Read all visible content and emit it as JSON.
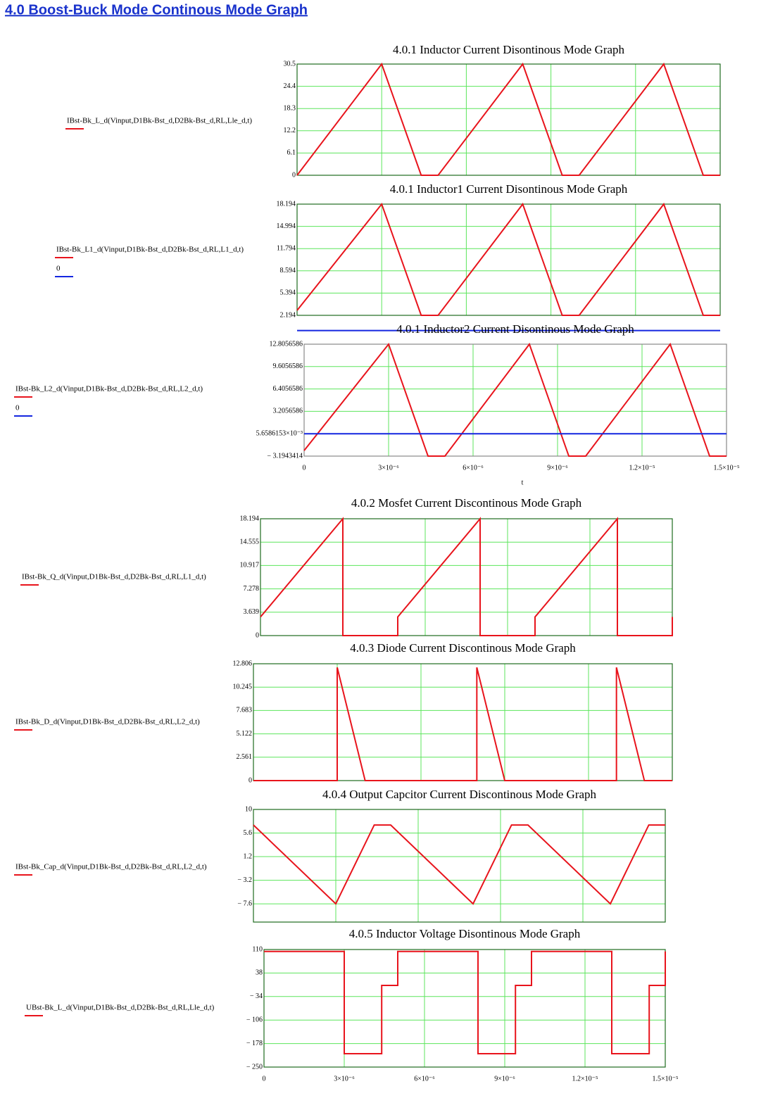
{
  "header": {
    "title": "4.0 Boost-Buck Mode Continous Mode Graph"
  },
  "chart_data": [
    {
      "type": "line",
      "title": "4.0.1 Inductor Current Disontinous Mode Graph",
      "grid": true,
      "show_xtick_labels": false,
      "x": [
        0,
        3e-06,
        4.4e-06,
        5e-06,
        8e-06,
        9.4e-06,
        1e-05,
        1.3e-05,
        1.44e-05,
        1.5e-05
      ],
      "series": [
        {
          "name": "IBst-Bk_L_d(Vinput,D1Bk-Bst_d,D2Bk-Bst_d,RL,Lle_d,t)",
          "color": "#e8141c",
          "values": [
            0,
            30.5,
            0,
            0,
            30.5,
            0,
            0,
            30.5,
            0,
            0
          ]
        }
      ],
      "xlim": [
        0,
        1.5e-05
      ],
      "xticks": [
        0,
        3e-06,
        6e-06,
        9e-06,
        1.2e-05,
        1.5e-05
      ],
      "ylim": [
        0,
        30.5
      ],
      "yticks": [
        0,
        6.1,
        12.2,
        18.3,
        24.4,
        30.5
      ]
    },
    {
      "type": "line",
      "title": "4.0.1 Inductor1 Current Disontinous Mode Graph",
      "grid": true,
      "show_xtick_labels": false,
      "x": [
        0,
        3e-06,
        4.4e-06,
        5e-06,
        8e-06,
        9.4e-06,
        1e-05,
        1.3e-05,
        1.44e-05,
        1.5e-05
      ],
      "series": [
        {
          "name": "IBst-Bk_L1_d(Vinput,D1Bk-Bst_d,D2Bk-Bst_d,RL,L1_d,t)",
          "color": "#e8141c",
          "values": [
            2.9,
            18.194,
            2.194,
            2.194,
            18.194,
            2.194,
            2.194,
            18.194,
            2.194,
            2.194
          ]
        },
        {
          "name": "0",
          "color": "#1426e0",
          "values": [
            0,
            0,
            0,
            0,
            0,
            0,
            0,
            0,
            0,
            0
          ]
        }
      ],
      "xlim": [
        0,
        1.5e-05
      ],
      "xticks": [
        0,
        3e-06,
        6e-06,
        9e-06,
        1.2e-05,
        1.5e-05
      ],
      "ylim": [
        2.194,
        18.194
      ],
      "yticks": [
        2.194,
        5.394,
        8.594,
        11.794,
        14.994,
        18.194
      ]
    },
    {
      "type": "line",
      "title": "4.0.1 Inductor2 Current Disontinous Mode Graph",
      "grid": true,
      "show_xtick_labels": true,
      "xlabel": "t",
      "x": [
        0,
        3e-06,
        4.4e-06,
        5e-06,
        8e-06,
        9.4e-06,
        1e-05,
        1.3e-05,
        1.44e-05,
        1.5e-05
      ],
      "series": [
        {
          "name": "IBst-Bk_L2_d(Vinput,D1Bk-Bst_d,D2Bk-Bst_d,RL,L2_d,t)",
          "color": "#e8141c",
          "values": [
            -2.4,
            12.8056586,
            -3.1943414,
            -3.1943414,
            12.8056586,
            -3.1943414,
            -3.1943414,
            12.8056586,
            -3.1943414,
            -3.1943414
          ]
        },
        {
          "name": "0",
          "color": "#1426e0",
          "values": [
            0,
            0,
            0,
            0,
            0,
            0,
            0,
            0,
            0,
            0
          ]
        }
      ],
      "xlim": [
        0,
        1.5e-05
      ],
      "xticks": [
        0,
        {
          "value": 3e-06,
          "label": "3×10⁻⁶"
        },
        {
          "value": 6e-06,
          "label": "6×10⁻⁶"
        },
        {
          "value": 9e-06,
          "label": "9×10⁻⁶"
        },
        {
          "value": 1.2e-05,
          "label": "1.2×10⁻⁵"
        },
        {
          "value": 1.5e-05,
          "label": "1.5×10⁻⁵"
        }
      ],
      "ylim": [
        -3.1943414,
        12.8056586
      ],
      "yticks": [
        {
          "value": -3.1943414,
          "label": "− 3.1943414"
        },
        {
          "value": 0.0056586153,
          "label": "5.6586153×10⁻³"
        },
        3.2056586,
        6.4056586,
        9.6056586,
        12.8056586
      ]
    },
    {
      "type": "line",
      "title": "4.0.2 Mosfet Current Discontinous Mode Graph",
      "grid": true,
      "show_xtick_labels": false,
      "x": [
        0,
        3e-06,
        3e-06,
        5e-06,
        5e-06,
        8e-06,
        8e-06,
        1e-05,
        1e-05,
        1.3e-05,
        1.3e-05,
        1.5e-05,
        1.5e-05
      ],
      "series": [
        {
          "name": "IBst-Bk_Q_d(Vinput,D1Bk-Bst_d,D2Bk-Bst_d,RL,L1_d,t)",
          "color": "#e8141c",
          "values": [
            2.9,
            18.194,
            0,
            0,
            2.9,
            18.194,
            0,
            0,
            2.9,
            18.194,
            0,
            0,
            2.9
          ]
        }
      ],
      "xlim": [
        0,
        1.5e-05
      ],
      "xticks": [
        0,
        3e-06,
        6e-06,
        9e-06,
        1.2e-05,
        1.5e-05
      ],
      "ylim": [
        0,
        18.194
      ],
      "yticks": [
        0,
        3.639,
        7.278,
        10.917,
        14.555,
        18.194
      ]
    },
    {
      "type": "line",
      "title": "4.0.3 Diode Current Discontinous Mode Graph",
      "grid": true,
      "show_xtick_labels": false,
      "x": [
        0,
        3e-06,
        3e-06,
        4e-06,
        8e-06,
        8e-06,
        9e-06,
        1.3e-05,
        1.3e-05,
        1.4e-05,
        1.5e-05
      ],
      "series": [
        {
          "name": "IBst-Bk_D_d(Vinput,D1Bk-Bst_d,D2Bk-Bst_d,RL,L2_d,t)",
          "color": "#e8141c",
          "values": [
            0,
            0,
            12.4,
            0,
            0,
            12.4,
            0,
            0,
            12.4,
            0,
            0
          ]
        }
      ],
      "xlim": [
        0,
        1.5e-05
      ],
      "xticks": [
        0,
        3e-06,
        6e-06,
        9e-06,
        1.2e-05,
        1.5e-05
      ],
      "ylim": [
        0,
        12.806
      ],
      "yticks": [
        0,
        2.561,
        5.122,
        7.683,
        10.245,
        12.806
      ]
    },
    {
      "type": "line",
      "title": "4.0.4 Output Capcitor Current Discontinous Mode Graph",
      "grid": true,
      "show_xtick_labels": false,
      "x": [
        0,
        3e-06,
        4.4e-06,
        5e-06,
        8e-06,
        9.4e-06,
        1e-05,
        1.3e-05,
        1.44e-05,
        1.5e-05
      ],
      "series": [
        {
          "name": "IBst-Bk_Cap_d(Vinput,D1Bk-Bst_d,D2Bk-Bst_d,RL,L2_d,t)",
          "color": "#e8141c",
          "values": [
            7.1,
            -7.6,
            7.1,
            7.1,
            -7.6,
            7.1,
            7.1,
            -7.6,
            7.1,
            7.1
          ]
        }
      ],
      "xlim": [
        0,
        1.5e-05
      ],
      "xticks": [
        0,
        3e-06,
        6e-06,
        9e-06,
        1.2e-05,
        1.5e-05
      ],
      "ylim": [
        -11,
        10
      ],
      "yticks": [
        {
          "value": -7.6,
          "label": "− 7.6"
        },
        {
          "value": -3.2,
          "label": "− 3.2"
        },
        1.2,
        5.6,
        10
      ]
    },
    {
      "type": "line",
      "title": "4.0.5 Inductor Voltage Disontinous Mode Graph",
      "grid": true,
      "show_xtick_labels": true,
      "x": [
        0,
        3e-06,
        3e-06,
        4.4e-06,
        4.4e-06,
        5e-06,
        5e-06,
        8e-06,
        8e-06,
        9.4e-06,
        9.4e-06,
        1e-05,
        1e-05,
        1.3e-05,
        1.3e-05,
        1.44e-05,
        1.44e-05,
        1.5e-05,
        1.5e-05
      ],
      "series": [
        {
          "name": "UBst-Bk_L_d(Vinput,D1Bk-Bst_d,D2Bk-Bst_d,RL,Lle_d,t)",
          "color": "#e8141c",
          "values": [
            104,
            104,
            -209,
            -209,
            0,
            0,
            104,
            104,
            -209,
            -209,
            0,
            0,
            104,
            104,
            -209,
            -209,
            0,
            0,
            104
          ]
        }
      ],
      "xlim": [
        0,
        1.5e-05
      ],
      "xticks": [
        0,
        {
          "value": 3e-06,
          "label": "3×10⁻⁶"
        },
        {
          "value": 6e-06,
          "label": "6×10⁻⁶"
        },
        {
          "value": 9e-06,
          "label": "9×10⁻⁶"
        },
        {
          "value": 1.2e-05,
          "label": "1.2×10⁻⁵"
        },
        {
          "value": 1.5e-05,
          "label": "1.5×10⁻⁵"
        }
      ],
      "ylim": [
        -250,
        110
      ],
      "yticks": [
        {
          "value": -250,
          "label": "− 250"
        },
        {
          "value": -178,
          "label": "− 178"
        },
        {
          "value": -106,
          "label": "− 106"
        },
        {
          "value": -34,
          "label": "− 34"
        },
        38,
        110
      ]
    }
  ]
}
